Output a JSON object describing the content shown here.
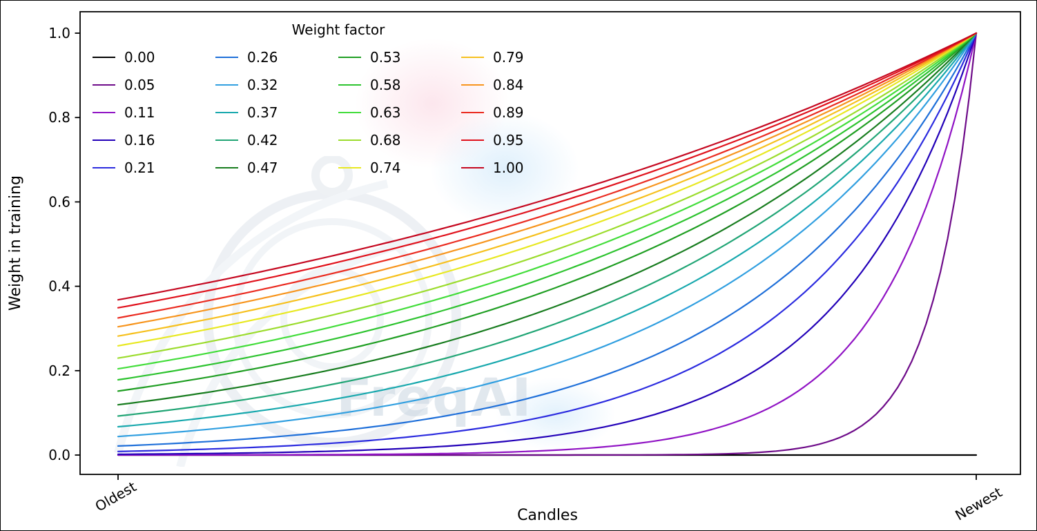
{
  "chart_data": {
    "type": "line",
    "title": "",
    "xlabel": "Candles",
    "ylabel": "Weight in training",
    "x_tick_labels": [
      "Oldest",
      "Newest"
    ],
    "y_ticks": [
      0.0,
      0.2,
      0.4,
      0.6,
      0.8,
      1.0
    ],
    "y_tick_labels": [
      "0.0",
      "0.2",
      "0.4",
      "0.6",
      "0.8",
      "1.0"
    ],
    "xlim": [
      -0.05,
      1.05
    ],
    "ylim": [
      -0.05,
      1.05
    ],
    "grid": false,
    "watermark": "FreqAI",
    "legend": {
      "title": "Weight factor",
      "position": "upper-left",
      "columns": 4,
      "fill_order": "column-major",
      "frame": false
    },
    "curve_formula": "weight = exp(-(1 - x) / weight_factor) for x in [0,1]; weight_factor = 0 gives a flat line at 0",
    "sample_x": [
      0,
      0.25,
      0.5,
      0.75,
      1
    ],
    "series": [
      {
        "label": "0.00",
        "factor": 0.0,
        "color": "#000000",
        "sample_y": [
          0,
          0,
          0,
          0,
          0
        ]
      },
      {
        "label": "0.05",
        "factor": 0.05,
        "color": "#6e0b89",
        "sample_y": [
          0.0,
          0.0,
          0.0,
          0.0067,
          1.0
        ]
      },
      {
        "label": "0.11",
        "factor": 0.11,
        "color": "#9013c4",
        "sample_y": [
          0.0001,
          0.0011,
          0.0106,
          0.1031,
          1.0
        ]
      },
      {
        "label": "0.16",
        "factor": 0.16,
        "color": "#2200b8",
        "sample_y": [
          0.0019,
          0.0092,
          0.0439,
          0.2096,
          1.0
        ]
      },
      {
        "label": "0.21",
        "factor": 0.21,
        "color": "#2b2bdf",
        "sample_y": [
          0.0086,
          0.0281,
          0.0924,
          0.3042,
          1.0
        ]
      },
      {
        "label": "0.26",
        "factor": 0.26,
        "color": "#1e6fd9",
        "sample_y": [
          0.0213,
          0.056,
          0.1459,
          0.382,
          1.0
        ]
      },
      {
        "label": "0.32",
        "factor": 0.32,
        "color": "#309fe0",
        "sample_y": [
          0.0439,
          0.096,
          0.2096,
          0.4578,
          1.0
        ]
      },
      {
        "label": "0.37",
        "factor": 0.37,
        "color": "#17a8ad",
        "sample_y": [
          0.067,
          0.1317,
          0.2589,
          0.5088,
          1.0
        ]
      },
      {
        "label": "0.42",
        "factor": 0.42,
        "color": "#21a575",
        "sample_y": [
          0.0924,
          0.1677,
          0.3041,
          0.5515,
          1.0
        ]
      },
      {
        "label": "0.47",
        "factor": 0.47,
        "color": "#177c1e",
        "sample_y": [
          0.1191,
          0.2027,
          0.3451,
          0.5874,
          1.0
        ]
      },
      {
        "label": "0.53",
        "factor": 0.53,
        "color": "#1f9e22",
        "sample_y": [
          0.1516,
          0.243,
          0.3894,
          0.6239,
          1.0
        ]
      },
      {
        "label": "0.58",
        "factor": 0.58,
        "color": "#2cc32e",
        "sample_y": [
          0.1784,
          0.2744,
          0.4223,
          0.6498,
          1.0
        ]
      },
      {
        "label": "0.63",
        "factor": 0.63,
        "color": "#42dd3a",
        "sample_y": [
          0.2045,
          0.3041,
          0.4522,
          0.6724,
          1.0
        ]
      },
      {
        "label": "0.68",
        "factor": 0.68,
        "color": "#9bdc2c",
        "sample_y": [
          0.2298,
          0.3319,
          0.4794,
          0.6922,
          1.0
        ]
      },
      {
        "label": "0.74",
        "factor": 0.74,
        "color": "#e8e821",
        "sample_y": [
          0.2589,
          0.363,
          0.5088,
          0.7133,
          1.0
        ]
      },
      {
        "label": "0.79",
        "factor": 0.79,
        "color": "#f6c01d",
        "sample_y": [
          0.282,
          0.3869,
          0.5311,
          0.7288,
          1.0
        ]
      },
      {
        "label": "0.84",
        "factor": 0.84,
        "color": "#f7941c",
        "sample_y": [
          0.3041,
          0.4094,
          0.5515,
          0.7425,
          1.0
        ]
      },
      {
        "label": "0.89",
        "factor": 0.89,
        "color": "#ea2a1f",
        "sample_y": [
          0.3251,
          0.4305,
          0.5701,
          0.755,
          1.0
        ]
      },
      {
        "label": "0.95",
        "factor": 0.95,
        "color": "#e0111b",
        "sample_y": [
          0.349,
          0.454,
          0.5908,
          0.7687,
          1.0
        ]
      },
      {
        "label": "1.00",
        "factor": 1.0,
        "color": "#c50820",
        "sample_y": [
          0.3679,
          0.4724,
          0.6065,
          0.7788,
          1.0
        ]
      }
    ]
  }
}
